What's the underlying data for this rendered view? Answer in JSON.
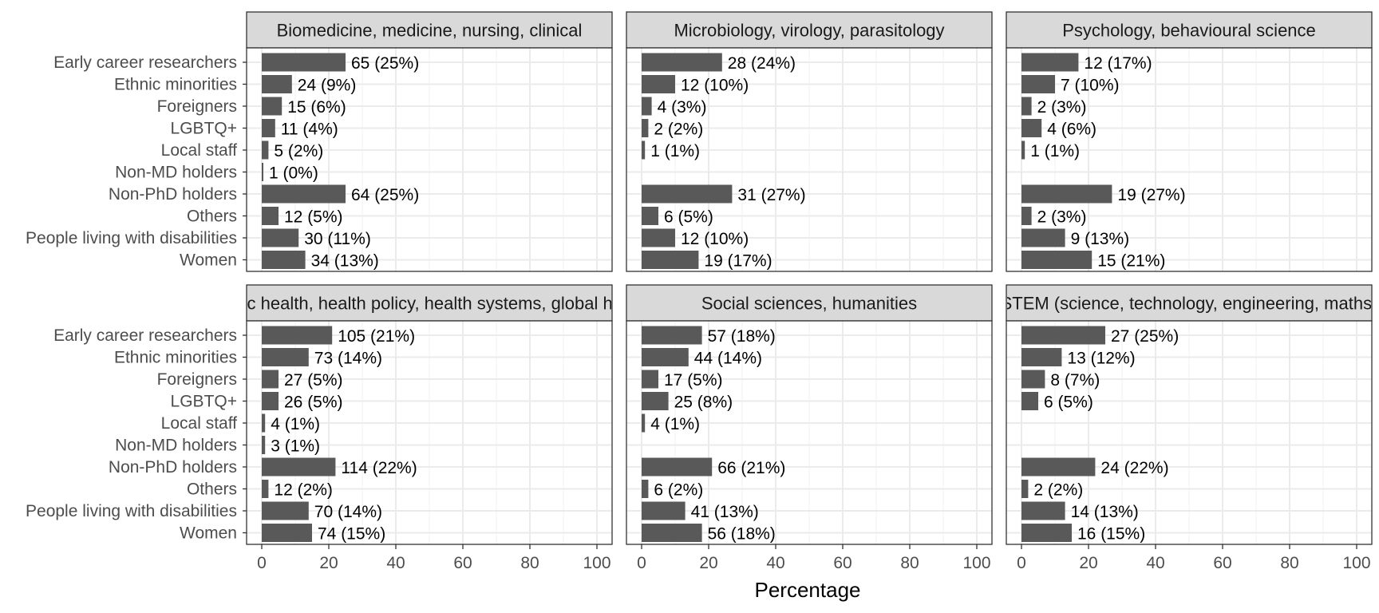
{
  "chart_data": {
    "type": "bar",
    "orientation": "horizontal",
    "xlabel": "Percentage",
    "ylabel": "",
    "xlim": [
      0,
      100
    ],
    "x_ticks": [
      "0",
      "20",
      "40",
      "60",
      "80",
      "100"
    ],
    "grid": true,
    "bar_color": "#595959",
    "strip_color": "#d9d9d9",
    "categories": [
      "Early career researchers",
      "Ethnic minorities",
      "Foreigners",
      "LGBTQ+",
      "Local staff",
      "Non-MD holders",
      "Non-PhD holders",
      "Others",
      "People living with disabilities",
      "Women"
    ],
    "panels": [
      {
        "title": "Biomedicine, medicine, nursing, clinical",
        "values": [
          25,
          9,
          6,
          4,
          2,
          0,
          25,
          5,
          11,
          13
        ],
        "labels": [
          "65 (25%)",
          "24 (9%)",
          "15 (6%)",
          "11 (4%)",
          "5 (2%)",
          "1 (0%)",
          "64 (25%)",
          "12 (5%)",
          "30 (11%)",
          "34 (13%)"
        ]
      },
      {
        "title": "Microbiology, virology, parasitology",
        "values": [
          24,
          10,
          3,
          2,
          1,
          null,
          27,
          5,
          10,
          17
        ],
        "labels": [
          "28 (24%)",
          "12 (10%)",
          "4 (3%)",
          "2 (2%)",
          "1 (1%)",
          "",
          "31 (27%)",
          "6 (5%)",
          "12 (10%)",
          "19 (17%)"
        ]
      },
      {
        "title": "Psychology, behavioural science",
        "values": [
          17,
          10,
          3,
          6,
          1,
          null,
          27,
          3,
          13,
          21
        ],
        "labels": [
          "12 (17%)",
          "7 (10%)",
          "2 (3%)",
          "4 (6%)",
          "1 (1%)",
          "",
          "19 (27%)",
          "2 (3%)",
          "9 (13%)",
          "15 (21%)"
        ]
      },
      {
        "title": "Public health, health policy, health systems, global health",
        "values": [
          21,
          14,
          5,
          5,
          1,
          1,
          22,
          2,
          14,
          15
        ],
        "labels": [
          "105 (21%)",
          "73 (14%)",
          "27 (5%)",
          "26 (5%)",
          "4 (1%)",
          "3 (1%)",
          "114 (22%)",
          "12 (2%)",
          "70 (14%)",
          "74 (15%)"
        ]
      },
      {
        "title": "Social sciences, humanities",
        "values": [
          18,
          14,
          5,
          8,
          1,
          null,
          21,
          2,
          13,
          18
        ],
        "labels": [
          "57 (18%)",
          "44 (14%)",
          "17 (5%)",
          "25 (8%)",
          "4 (1%)",
          "",
          "66 (21%)",
          "6 (2%)",
          "41 (13%)",
          "56 (18%)"
        ]
      },
      {
        "title": "STEM (science, technology, engineering, maths)",
        "values": [
          25,
          12,
          7,
          5,
          null,
          null,
          22,
          2,
          13,
          15
        ],
        "labels": [
          "27 (25%)",
          "13 (12%)",
          "8 (7%)",
          "6 (5%)",
          "",
          "",
          "24 (22%)",
          "2 (2%)",
          "14 (13%)",
          "16 (15%)"
        ]
      }
    ]
  }
}
